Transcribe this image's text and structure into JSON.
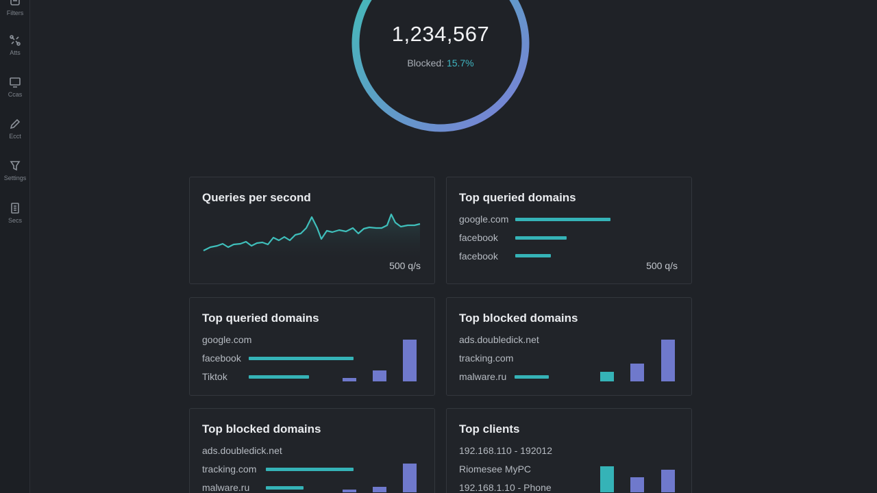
{
  "sidebar": {
    "items": [
      {
        "label": "Filters",
        "icon": "filter-icon"
      },
      {
        "label": "Atts",
        "icon": "tools-icon"
      },
      {
        "label": "Ccas",
        "icon": "monitor-icon"
      },
      {
        "label": "Ecct",
        "icon": "pencil-icon"
      },
      {
        "label": "Settings",
        "icon": "funnel-icon"
      },
      {
        "label": "Secs",
        "icon": "document-icon"
      }
    ]
  },
  "summary": {
    "total_queries": "1,234,567",
    "blocked_label": "Blocked:",
    "blocked_percent": "15.7%",
    "blocked_fraction": 0.157,
    "colors": {
      "ring_start": "#3fbfb5",
      "ring_end": "#7c7ed8"
    }
  },
  "cards": {
    "qps": {
      "title": "Queries per second",
      "value": "500 q/s"
    },
    "top_queried_1": {
      "title": "Top queried domains",
      "rows": [
        "google.com",
        "facebook",
        "facebook"
      ],
      "value": "500 q/s"
    },
    "top_queried_2": {
      "title": "Top queried domains",
      "rows": [
        "google.com",
        "facebook",
        "Tiktok"
      ]
    },
    "top_blocked_1": {
      "title": "Top blocked domains",
      "rows": [
        "ads.doubledick.net",
        "tracking.com",
        "malware.ru"
      ]
    },
    "top_blocked_2": {
      "title": "Top blocked domains",
      "rows": [
        "ads.doubledick.net",
        "tracking.com",
        "malware.ru"
      ]
    },
    "top_clients": {
      "title": "Top clients",
      "rows": [
        "192.168.110 - 192012",
        "Riomesee MyPC",
        "192.168.1.10 - Phone"
      ]
    }
  },
  "colors": {
    "accent_teal": "#35b3b7",
    "accent_purple": "#6f79cc",
    "background": "#1f2227"
  }
}
